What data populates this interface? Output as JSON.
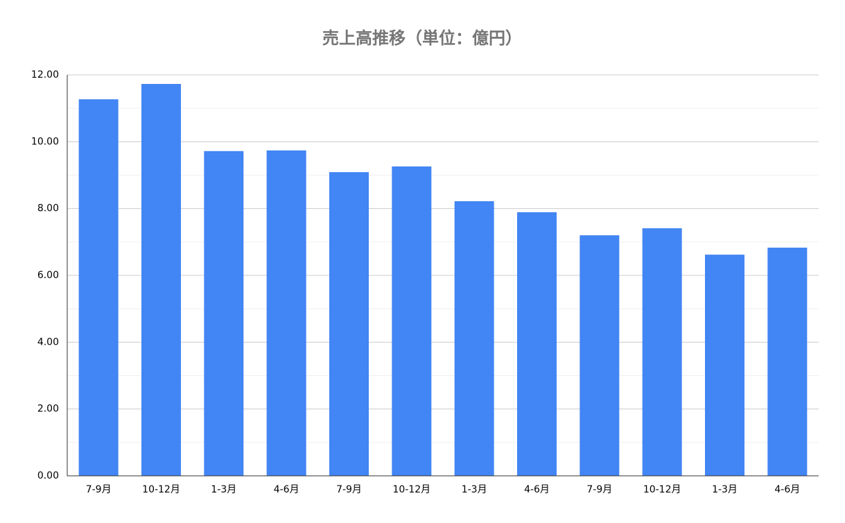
{
  "chart_data": {
    "type": "bar",
    "title": "売上高推移（単位：億円）",
    "categories": [
      "7-9月",
      "10-12月",
      "1-3月",
      "4-6月",
      "7-9月",
      "10-12月",
      "1-3月",
      "4-6月",
      "7-9月",
      "10-12月",
      "1-3月",
      "4-6月"
    ],
    "values": [
      11.27,
      11.73,
      9.72,
      9.74,
      9.09,
      9.26,
      8.22,
      7.89,
      7.2,
      7.41,
      6.62,
      6.83
    ],
    "color": "#4285f4",
    "ylim": [
      0,
      12
    ],
    "yticks": [
      {
        "value": 0,
        "label": "0.00"
      },
      {
        "value": 2,
        "label": "2.00"
      },
      {
        "value": 4,
        "label": "4.00"
      },
      {
        "value": 6,
        "label": "6.00"
      },
      {
        "value": 8,
        "label": "8.00"
      },
      {
        "value": 10,
        "label": "10.00"
      },
      {
        "value": 12,
        "label": "12.00"
      }
    ],
    "yminorticks": [
      1,
      3,
      5,
      7,
      9,
      11
    ],
    "grid": true
  }
}
